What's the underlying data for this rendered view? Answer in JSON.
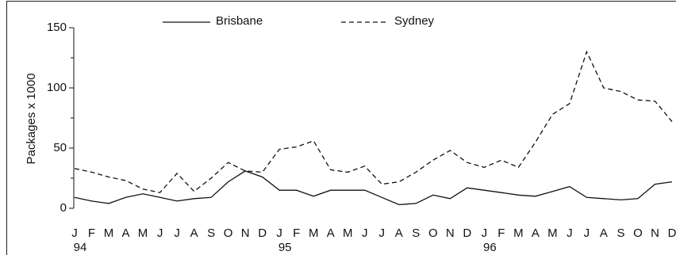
{
  "chart_data": {
    "type": "line",
    "y_label": "Packages x 1000",
    "categories": [
      "J",
      "F",
      "M",
      "A",
      "M",
      "J",
      "J",
      "A",
      "S",
      "O",
      "N",
      "D",
      "J",
      "F",
      "M",
      "A",
      "M",
      "J",
      "J",
      "A",
      "S",
      "O",
      "N",
      "D",
      "J",
      "F",
      "M",
      "A",
      "M",
      "J",
      "J",
      "A",
      "S",
      "O",
      "N",
      "D"
    ],
    "years": [
      "94",
      null,
      null,
      null,
      null,
      null,
      null,
      null,
      null,
      null,
      null,
      null,
      "95",
      null,
      null,
      null,
      null,
      null,
      null,
      null,
      null,
      null,
      null,
      null,
      "96",
      null,
      null,
      null,
      null,
      null,
      null,
      null,
      null,
      null,
      null,
      null
    ],
    "series": [
      {
        "name": "Brisbane",
        "color": "#111111",
        "dashed": false,
        "values": [
          9,
          6,
          4,
          9,
          12,
          9,
          6,
          8,
          9,
          22,
          31,
          26,
          15,
          15,
          10,
          15,
          15,
          15,
          9,
          3,
          4,
          11,
          8,
          17,
          15,
          13,
          11,
          10,
          14,
          18,
          9,
          8,
          7,
          8,
          20,
          22
        ]
      },
      {
        "name": "Sydney",
        "color": "#111111",
        "dashed": true,
        "values": [
          33,
          30,
          26,
          23,
          16,
          13,
          29,
          14,
          25,
          38,
          31,
          30,
          49,
          51,
          56,
          32,
          30,
          35,
          20,
          22,
          30,
          40,
          48,
          38,
          34,
          40,
          34,
          55,
          78,
          87,
          130,
          100,
          97,
          90,
          89,
          72
        ]
      }
    ],
    "ylim": [
      0,
      150
    ],
    "yticks": [
      0,
      50,
      100,
      150
    ],
    "minor_yticks": [
      25,
      75,
      125
    ]
  }
}
